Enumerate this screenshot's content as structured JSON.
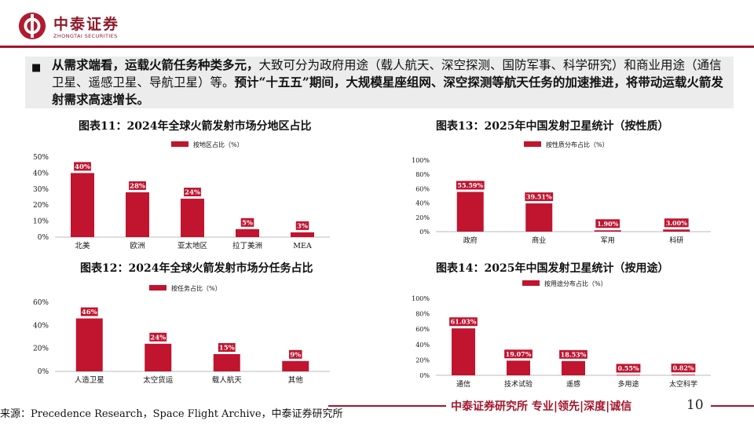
{
  "header": {
    "logo_cn": "中泰证券",
    "logo_en": "ZHONGTAI SECURITIES"
  },
  "intro": {
    "bullet": "■",
    "part1_bold": "从需求端看，运载火箭任务种类多元，",
    "part2": "大致可分为政府用途（载人航天、深空探测、国防军事、科学研究）和商业用途（通信卫星、遥感卫星、导航卫星）等。",
    "part3_bold": "预计“十五五”期间，大规模星座组网、深空探测等航天任务的加速推进，将带动运载火箭发射需求高速增长。"
  },
  "chart_data": [
    {
      "id": "fig11",
      "type": "bar",
      "title": "图表11：2024年全球火箭发射市场分地区占比",
      "legend": "按地区占比（%）",
      "categories": [
        "北美",
        "欧洲",
        "亚太地区",
        "拉丁美洲",
        "MEA"
      ],
      "values": [
        40,
        28,
        24,
        5,
        3
      ],
      "value_labels": [
        "40%",
        "28%",
        "24%",
        "5%",
        "3%"
      ],
      "yticks": [
        "0%",
        "10%",
        "20%",
        "30%",
        "40%",
        "50%"
      ],
      "ylim": [
        0,
        50
      ],
      "color": "#c0142f"
    },
    {
      "id": "fig12",
      "type": "bar",
      "title": "图表12：2024年全球火箭发射市场分任务占比",
      "legend": "按任务占比（%）",
      "categories": [
        "人造卫星",
        "太空货运",
        "载人航天",
        "其他"
      ],
      "values": [
        46,
        24,
        15,
        9
      ],
      "value_labels": [
        "46%",
        "24%",
        "15%",
        "9%"
      ],
      "yticks": [
        "0%",
        "20%",
        "40%",
        "60%"
      ],
      "ylim": [
        0,
        60
      ],
      "color": "#c0142f"
    },
    {
      "id": "fig13",
      "type": "bar",
      "title": "图表13：2025年中国发射卫星统计（按性质）",
      "legend": "按性质分布占比（%）",
      "categories": [
        "政府",
        "商业",
        "军用",
        "科研"
      ],
      "values": [
        55.59,
        39.51,
        1.9,
        3.0
      ],
      "value_labels": [
        "55.59%",
        "39.51%",
        "1.90%",
        "3.00%"
      ],
      "yticks": [
        "0%",
        "20%",
        "40%",
        "60%",
        "80%",
        "100%"
      ],
      "ylim": [
        0,
        100
      ],
      "color": "#c0142f"
    },
    {
      "id": "fig14",
      "type": "bar",
      "title": "图表14：2025年中国发射卫星统计（按用途）",
      "legend": "按用途分布占比（%）",
      "categories": [
        "通信",
        "技术试验",
        "遥感",
        "多用途",
        "太空科学"
      ],
      "values": [
        61.03,
        19.07,
        18.53,
        0.55,
        0.82
      ],
      "value_labels": [
        "61.03%",
        "19.07%",
        "18.53%",
        "0.55%",
        "0.82%"
      ],
      "yticks": [
        "0%",
        "20%",
        "40%",
        "60%",
        "80%",
        "100%"
      ],
      "ylim": [
        0,
        100
      ],
      "color": "#c0142f"
    }
  ],
  "footer": {
    "source": "来源：Precedence Research，Space Flight Archive，中泰证券研究所",
    "tagline": "中泰证券研究所 专业|领先|深度|诚信",
    "page": "10"
  }
}
